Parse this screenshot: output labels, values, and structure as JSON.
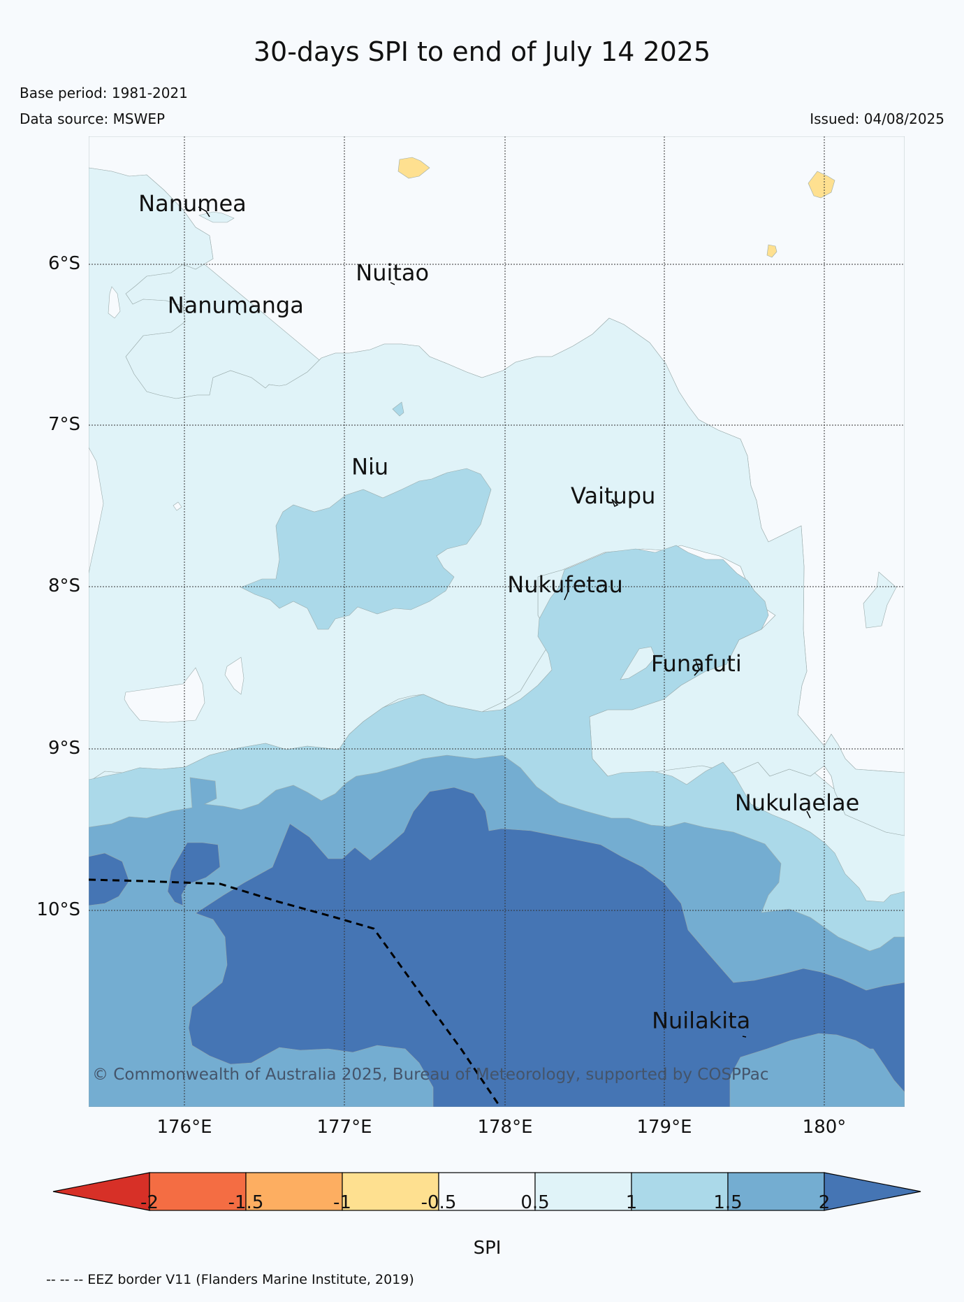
{
  "title": "30-days SPI to end of July 14 2025",
  "base_period": "Base period: 1981-2021",
  "data_source": "Data source: MSWEP",
  "issued": "Issued: 04/08/2025",
  "lat_labels": [
    "6°S",
    "7°S",
    "8°S",
    "9°S",
    "10°S"
  ],
  "lon_labels": [
    "176°E",
    "177°E",
    "178°E",
    "179°E",
    "180°"
  ],
  "places": [
    {
      "name": "Nanumea",
      "lon": 176.05,
      "lat": -5.67
    },
    {
      "name": "Nuitao",
      "lon": 177.3,
      "lat": -6.1
    },
    {
      "name": "Nanumanga",
      "lon": 176.32,
      "lat": -6.3
    },
    {
      "name": "Niu",
      "lon": 177.16,
      "lat": -7.3
    },
    {
      "name": "Vaitupu",
      "lon": 178.68,
      "lat": -7.48
    },
    {
      "name": "Nukufetau",
      "lon": 178.38,
      "lat": -8.03
    },
    {
      "name": "Funafuti",
      "lon": 179.2,
      "lat": -8.52
    },
    {
      "name": "Nukulaelae",
      "lon": 179.83,
      "lat": -9.38
    },
    {
      "name": "Nuilakita",
      "lon": 179.23,
      "lat": -10.73
    }
  ],
  "copyright": "© Commonwealth of Australia 2025, Bureau of Meteorology, supported by COSPPac",
  "colorbar": {
    "label": "SPI",
    "ticks": [
      "-2",
      "-1.5",
      "-1",
      "-0.5",
      "0.5",
      "1",
      "1.5",
      "2"
    ],
    "colors": [
      "#d73027",
      "#f46d43",
      "#fdae61",
      "#fee090",
      "#f7fafd",
      "#e0f3f8",
      "#abd9e9",
      "#74add1",
      "#4575b4"
    ]
  },
  "eez_note": "-- -- -- EEZ border V11 (Flanders Marine Institute, 2019)"
}
